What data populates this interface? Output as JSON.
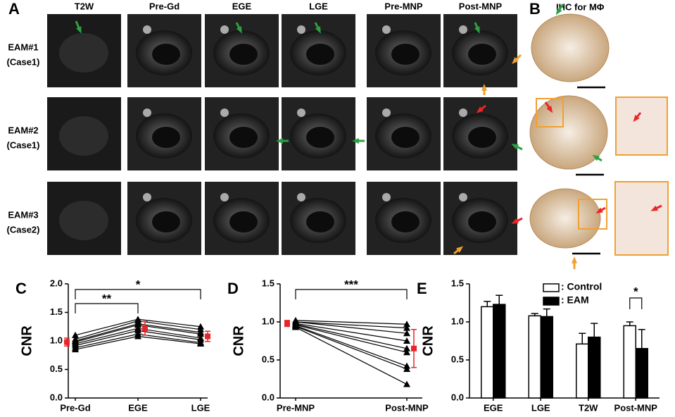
{
  "panel_a": {
    "label": "A",
    "columns": [
      "T2W",
      "Pre-Gd",
      "EGE",
      "LGE",
      "Pre-MNP",
      "Post-MNP"
    ],
    "rows": [
      {
        "name": "EAM#1",
        "case": "(Case1)"
      },
      {
        "name": "EAM#2",
        "case": "(Case1)"
      },
      {
        "name": "EAM#3",
        "case": "(Case2)"
      }
    ]
  },
  "panel_b": {
    "label": "B",
    "title": "IHC for MΦ"
  },
  "chart_data": [
    {
      "type": "line",
      "panel": "C",
      "y_label": "CNR",
      "categories": [
        "Pre-Gd",
        "EGE",
        "LGE"
      ],
      "ylim": [
        0,
        2
      ],
      "yticks": [
        {
          "value": 0,
          "label": "0.0"
        },
        0.5,
        {
          "value": 1,
          "label": "1.0"
        },
        1.5,
        {
          "value": 2,
          "label": "2.0"
        }
      ],
      "series": [
        {
          "color": "#000000",
          "values": [
            1.1,
            1.38,
            1.25
          ]
        },
        {
          "color": "#000000",
          "values": [
            1.03,
            1.35,
            1.2
          ]
        },
        {
          "color": "#000000",
          "values": [
            1.0,
            1.3,
            1.15
          ]
        },
        {
          "color": "#000000",
          "values": [
            0.98,
            1.28,
            1.12
          ]
        },
        {
          "color": "#000000",
          "values": [
            0.95,
            1.22,
            1.05
          ]
        },
        {
          "color": "#000000",
          "values": [
            0.92,
            1.18,
            1.02
          ]
        },
        {
          "color": "#000000",
          "values": [
            0.88,
            1.12,
            0.97
          ]
        },
        {
          "color": "#000000",
          "values": [
            0.85,
            1.08,
            0.95
          ]
        }
      ],
      "mean_series": {
        "color": "#e8262a",
        "values": [
          0.98,
          1.22,
          1.08
        ],
        "errors": [
          0.07,
          0.12,
          0.09
        ]
      },
      "significance": [
        {
          "between": [
            "Pre-Gd",
            "EGE"
          ],
          "label": "**"
        },
        {
          "between": [
            "Pre-Gd",
            "LGE"
          ],
          "label": "*"
        }
      ]
    },
    {
      "type": "line",
      "panel": "D",
      "y_label": "CNR",
      "categories": [
        "Pre-MNP",
        "Post-MNP"
      ],
      "ylim": [
        0,
        1.5
      ],
      "yticks": [
        {
          "value": 0,
          "label": "0.0"
        },
        0.5,
        {
          "value": 1,
          "label": "1.0"
        },
        1.5
      ],
      "series": [
        {
          "color": "#000000",
          "values": [
            1.02,
            0.97
          ]
        },
        {
          "color": "#000000",
          "values": [
            1.0,
            0.92
          ]
        },
        {
          "color": "#000000",
          "values": [
            1.0,
            0.85
          ]
        },
        {
          "color": "#000000",
          "values": [
            0.98,
            0.75
          ]
        },
        {
          "color": "#000000",
          "values": [
            0.97,
            0.65
          ]
        },
        {
          "color": "#000000",
          "values": [
            0.96,
            0.6
          ]
        },
        {
          "color": "#000000",
          "values": [
            0.95,
            0.42
          ]
        },
        {
          "color": "#000000",
          "values": [
            0.94,
            0.38
          ]
        },
        {
          "color": "#000000",
          "values": [
            0.93,
            0.18
          ]
        }
      ],
      "mean_series": {
        "color": "#e8262a",
        "values": [
          0.98,
          0.65
        ],
        "errors": [
          0.04,
          0.25
        ]
      },
      "significance": [
        {
          "between": [
            "Pre-MNP",
            "Post-MNP"
          ],
          "label": "***"
        }
      ]
    },
    {
      "type": "bar",
      "panel": "E",
      "y_label": "CNR",
      "categories": [
        "EGE",
        "LGE",
        "T2W",
        "Post-MNP"
      ],
      "ylim": [
        0,
        1.5
      ],
      "yticks": [
        {
          "value": 0,
          "label": "0.0"
        },
        0.5,
        {
          "value": 1,
          "label": "1.0"
        },
        1.5
      ],
      "legend": "upper center",
      "series": [
        {
          "name": ": Control",
          "color": "#ffffff",
          "values": [
            1.2,
            1.08,
            0.71,
            0.95
          ],
          "errors": [
            0.07,
            0.03,
            0.14,
            0.05
          ]
        },
        {
          "name": ": EAM",
          "color": "#000000",
          "values": [
            1.23,
            1.07,
            0.8,
            0.65
          ],
          "errors": [
            0.12,
            0.1,
            0.18,
            0.25
          ]
        }
      ],
      "significance": [
        {
          "between": [
            "Post-MNP"
          ],
          "label": "*"
        }
      ]
    }
  ]
}
